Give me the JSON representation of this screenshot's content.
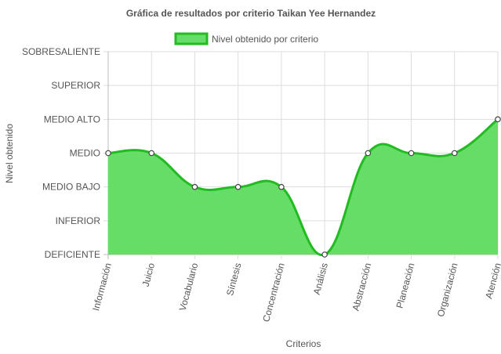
{
  "chart_data": {
    "type": "area",
    "title": "Gráfica de resultados por criterio Taikan Yee Hernandez",
    "xlabel": "Criterios",
    "ylabel": "Nivel obtenido",
    "categories": [
      "Información",
      "Juicio",
      "Vocabulario",
      "Síntesis",
      "Concentración",
      "Análisis",
      "Abstracción",
      "Planeación",
      "Organización",
      "Atención"
    ],
    "y_levels": [
      "DEFICIENTE",
      "INFERIOR",
      "MEDIO BAJO",
      "MEDIO",
      "MEDIO ALTO",
      "SUPERIOR",
      "SOBRESALIENTE"
    ],
    "ylim": [
      0,
      6
    ],
    "series": [
      {
        "name": "Nivel obtenido por criterio",
        "values": [
          3,
          3,
          2,
          2,
          2,
          0,
          3,
          3,
          3,
          4
        ]
      }
    ],
    "grid": true,
    "legend": "top-center",
    "colors": {
      "fill": "#66dd66",
      "stroke": "#22bb22",
      "point_fill": "#ffffff",
      "point_stroke": "#444444"
    }
  }
}
